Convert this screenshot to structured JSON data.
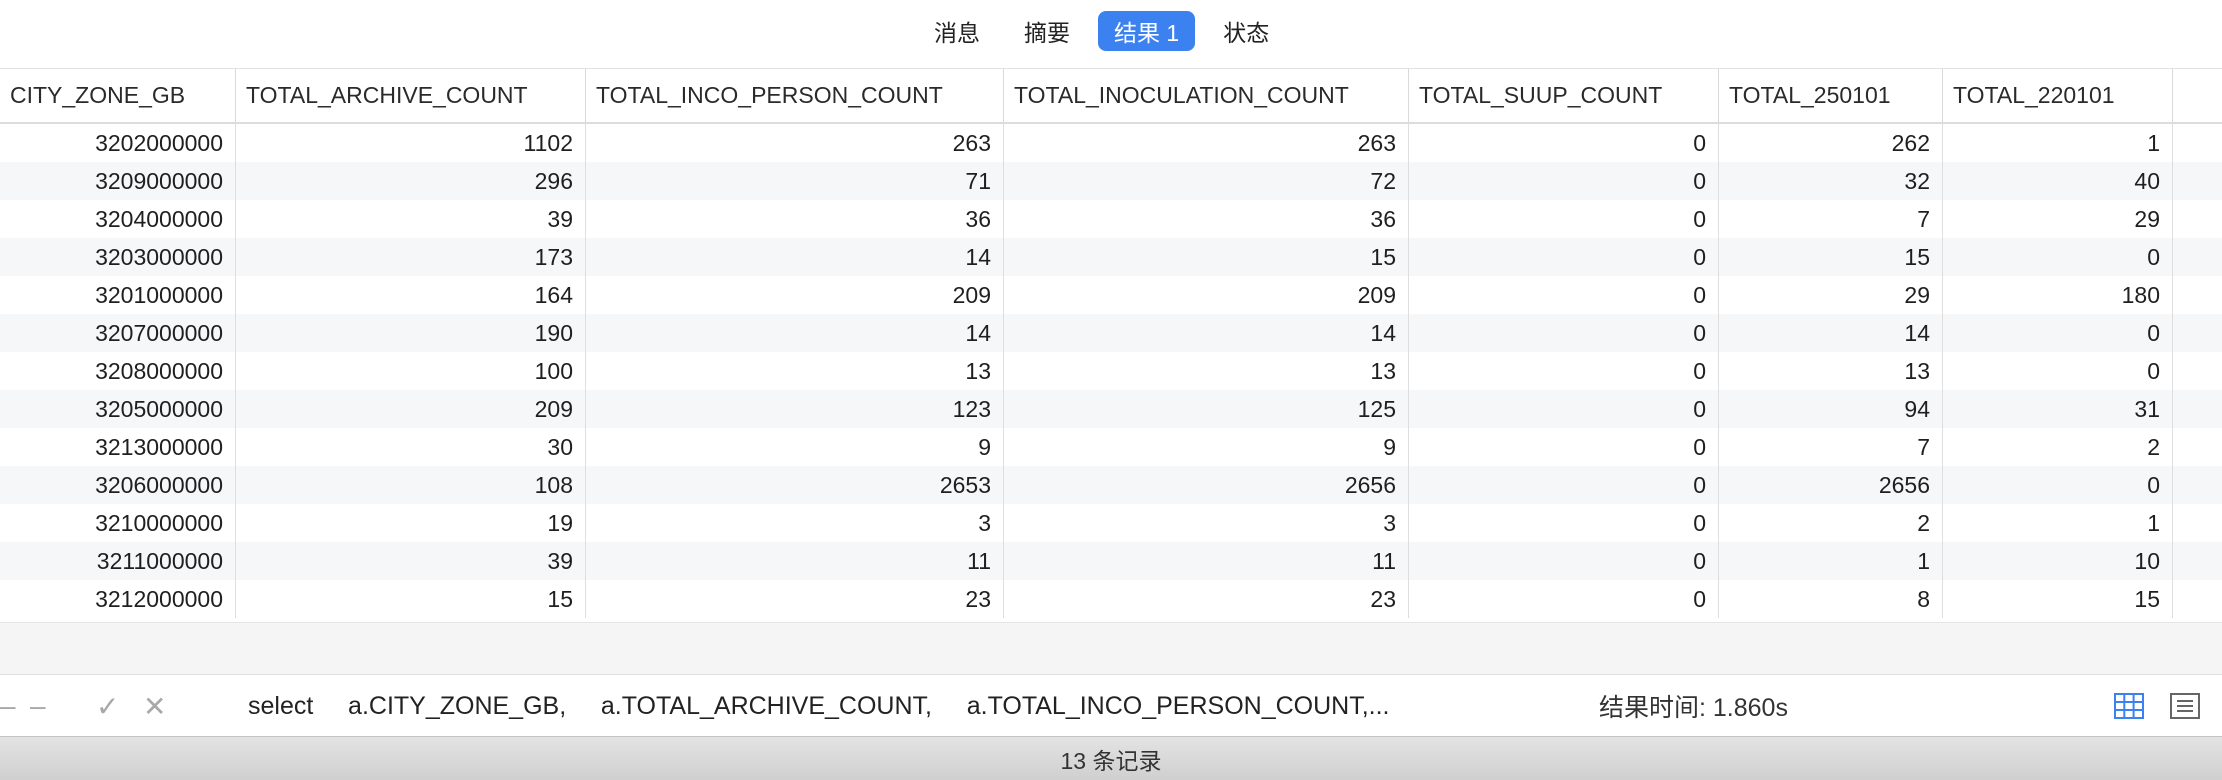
{
  "tabs": [
    {
      "label": "消息",
      "active": false
    },
    {
      "label": "摘要",
      "active": false
    },
    {
      "label": "结果 1",
      "active": true
    },
    {
      "label": "状态",
      "active": false
    }
  ],
  "table": {
    "columns": [
      "CITY_ZONE_GB",
      "TOTAL_ARCHIVE_COUNT",
      "TOTAL_INCO_PERSON_COUNT",
      "TOTAL_INOCULATION_COUNT",
      "TOTAL_SUUP_COUNT",
      "TOTAL_250101",
      "TOTAL_220101"
    ],
    "rows": [
      [
        "3202000000",
        "1102",
        "263",
        "263",
        "0",
        "262",
        "1"
      ],
      [
        "3209000000",
        "296",
        "71",
        "72",
        "0",
        "32",
        "40"
      ],
      [
        "3204000000",
        "39",
        "36",
        "36",
        "0",
        "7",
        "29"
      ],
      [
        "3203000000",
        "173",
        "14",
        "15",
        "0",
        "15",
        "0"
      ],
      [
        "3201000000",
        "164",
        "209",
        "209",
        "0",
        "29",
        "180"
      ],
      [
        "3207000000",
        "190",
        "14",
        "14",
        "0",
        "14",
        "0"
      ],
      [
        "3208000000",
        "100",
        "13",
        "13",
        "0",
        "13",
        "0"
      ],
      [
        "3205000000",
        "209",
        "123",
        "125",
        "0",
        "94",
        "31"
      ],
      [
        "3213000000",
        "30",
        "9",
        "9",
        "0",
        "7",
        "2"
      ],
      [
        "3206000000",
        "108",
        "2653",
        "2656",
        "0",
        "2656",
        "0"
      ],
      [
        "3210000000",
        "19",
        "3",
        "3",
        "0",
        "2",
        "1"
      ],
      [
        "3211000000",
        "39",
        "11",
        "11",
        "0",
        "1",
        "10"
      ],
      [
        "3212000000",
        "15",
        "23",
        "23",
        "0",
        "8",
        "15"
      ]
    ]
  },
  "querybar": {
    "sql": "select     a.CITY_ZONE_GB,     a.TOTAL_ARCHIVE_COUNT,     a.TOTAL_INCO_PERSON_COUNT,...",
    "result_time": "结果时间: 1.860s"
  },
  "footer": {
    "record_count": "13 条记录"
  },
  "colors": {
    "accent": "#3b82f0",
    "alt_row": "#f6f7f9"
  }
}
